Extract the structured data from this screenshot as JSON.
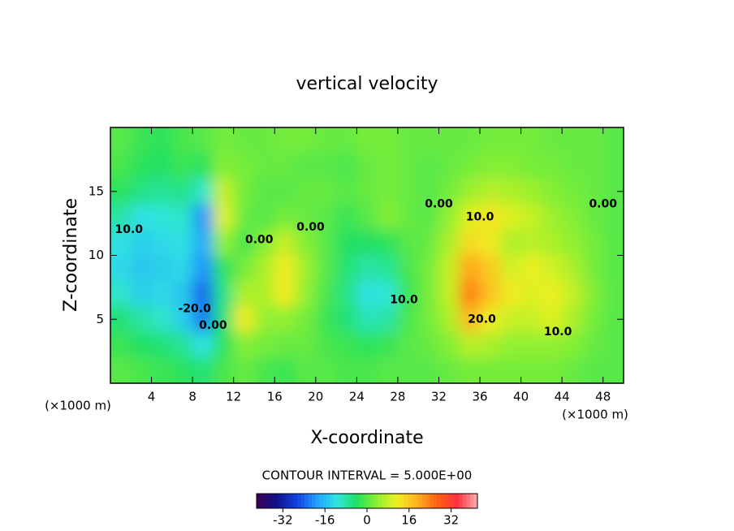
{
  "chart_data": {
    "type": "heatmap",
    "title": "vertical velocity",
    "x_label": "X-coordinate",
    "y_label": "Z-coordinate",
    "x_unit": "(×1000 m)",
    "y_unit": "(×1000 m)",
    "contour_interval_label": "CONTOUR INTERVAL = 5.000E+00",
    "x": [
      1,
      3,
      5,
      7,
      9,
      11,
      13,
      15,
      17,
      19,
      21,
      23,
      25,
      27,
      29,
      31,
      33,
      35,
      37,
      39,
      41,
      43,
      45,
      47,
      49
    ],
    "y": [
      19,
      17,
      15,
      13,
      11,
      9,
      7,
      5,
      3,
      1
    ],
    "values": [
      [
        0,
        -2,
        -3,
        -1,
        0,
        2,
        1,
        1,
        2,
        2,
        1,
        1,
        2,
        2,
        1,
        1,
        1,
        1,
        2,
        2,
        2,
        1,
        1,
        1,
        0
      ],
      [
        -1,
        -3,
        -4,
        -2,
        -3,
        3,
        2,
        1,
        1,
        0,
        0,
        -1,
        1,
        2,
        1,
        0,
        1,
        2,
        3,
        3,
        2,
        2,
        1,
        1,
        0
      ],
      [
        -3,
        -6,
        -7,
        -6,
        -10,
        8,
        2,
        0,
        0,
        1,
        1,
        0,
        1,
        2,
        1,
        0,
        2,
        5,
        7,
        6,
        5,
        3,
        2,
        1,
        0
      ],
      [
        -8,
        -12,
        -11,
        -10,
        -20,
        10,
        1,
        0,
        2,
        1,
        0,
        -2,
        0,
        3,
        1,
        0,
        4,
        10,
        13,
        10,
        8,
        5,
        3,
        1,
        0
      ],
      [
        -12,
        -14,
        -13,
        -12,
        -18,
        4,
        -1,
        3,
        8,
        3,
        0,
        -4,
        -4,
        -3,
        0,
        1,
        6,
        14,
        12,
        6,
        7,
        6,
        4,
        2,
        0
      ],
      [
        -13,
        -15,
        -14,
        -13,
        -20,
        -3,
        2,
        6,
        12,
        5,
        0,
        -5,
        -8,
        -7,
        -1,
        2,
        8,
        20,
        16,
        9,
        11,
        9,
        6,
        2,
        0
      ],
      [
        -10,
        -14,
        -13,
        -15,
        -24,
        -6,
        6,
        6,
        12,
        4,
        -1,
        -6,
        -12,
        -11,
        -2,
        2,
        8,
        24,
        17,
        12,
        10,
        11,
        8,
        3,
        0
      ],
      [
        -5,
        -8,
        -10,
        -14,
        -22,
        -5,
        12,
        4,
        4,
        2,
        -2,
        -5,
        -9,
        -8,
        -1,
        2,
        6,
        18,
        12,
        8,
        8,
        10,
        6,
        2,
        0
      ],
      [
        -2,
        -4,
        -5,
        -7,
        -12,
        -3,
        3,
        2,
        1,
        1,
        -1,
        -2,
        -3,
        -2,
        0,
        1,
        3,
        7,
        6,
        4,
        4,
        4,
        3,
        1,
        0
      ],
      [
        0,
        -1,
        -2,
        -3,
        -5,
        -1,
        1,
        -1,
        -2,
        0,
        0,
        -1,
        -1,
        0,
        0,
        0,
        1,
        2,
        2,
        2,
        2,
        2,
        1,
        0,
        0
      ]
    ],
    "xlim": [
      0,
      50
    ],
    "ylim": [
      0,
      20
    ],
    "xticks": [
      4,
      8,
      12,
      16,
      20,
      24,
      28,
      32,
      36,
      40,
      44,
      48
    ],
    "yticks": [
      5,
      10,
      15
    ],
    "colorbar_lim": [
      -42,
      42
    ],
    "colorbar_ticks": [
      -32,
      -16,
      0,
      16,
      32
    ],
    "colormap": [
      "#3a0050",
      "#10128c",
      "#1040e0",
      "#20a0ff",
      "#30e6e0",
      "#20e060",
      "#90f030",
      "#f0f020",
      "#ffb020",
      "#ff6010",
      "#ff3040",
      "#ffb0b0"
    ],
    "annotations": [
      {
        "text": "10.0",
        "x": 1.8,
        "y": 12
      },
      {
        "text": "0.00",
        "x": 14.5,
        "y": 11.2
      },
      {
        "text": "0.00",
        "x": 19.5,
        "y": 12.2
      },
      {
        "text": "0.00",
        "x": 32,
        "y": 14
      },
      {
        "text": "10.0",
        "x": 36,
        "y": 13
      },
      {
        "text": "0.00",
        "x": 48,
        "y": 14
      },
      {
        "text": "-20.0",
        "x": 8.2,
        "y": 5.8
      },
      {
        "text": "0.00",
        "x": 10,
        "y": 4.5
      },
      {
        "text": "10.0",
        "x": 28.6,
        "y": 6.5
      },
      {
        "text": "20.0",
        "x": 36.2,
        "y": 5
      },
      {
        "text": "10.0",
        "x": 43.6,
        "y": 4
      }
    ]
  }
}
